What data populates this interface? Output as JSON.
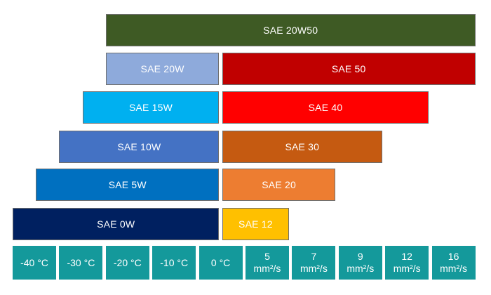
{
  "chart_data": {
    "type": "bar",
    "title": "",
    "scale": {
      "labels": [
        [
          "-40 °C"
        ],
        [
          "-30 °C"
        ],
        [
          "-20 °C"
        ],
        [
          "-10 °C"
        ],
        [
          "0 °C"
        ],
        [
          "5",
          "mm²/s"
        ],
        [
          "7",
          "mm²/s"
        ],
        [
          "9",
          "mm²/s"
        ],
        [
          "12",
          "mm²/s"
        ],
        [
          "16",
          "mm²/s"
        ]
      ],
      "color": "#14999b"
    },
    "bars": [
      {
        "label": "SAE 20W50",
        "start": 2,
        "end": 10,
        "color": "#3e5a24"
      },
      {
        "label": "SAE 20W",
        "start": 2,
        "end": 4.5,
        "color": "#8eaadb"
      },
      {
        "label": "SAE 50",
        "start": 4.5,
        "end": 10,
        "color": "#c00000"
      },
      {
        "label": "SAE 15W",
        "start": 1.5,
        "end": 4.5,
        "color": "#00b0f0"
      },
      {
        "label": "SAE 40",
        "start": 4.5,
        "end": 9,
        "color": "#ff0000"
      },
      {
        "label": "SAE 10W",
        "start": 1,
        "end": 4.5,
        "color": "#4472c4"
      },
      {
        "label": "SAE 30",
        "start": 4.5,
        "end": 8,
        "color": "#c55a11"
      },
      {
        "label": "SAE 5W",
        "start": 0.5,
        "end": 4.5,
        "color": "#0070c0"
      },
      {
        "label": "SAE 20",
        "start": 4.5,
        "end": 7,
        "color": "#ed7d31"
      },
      {
        "label": "SAE 0W",
        "start": 0,
        "end": 4.5,
        "color": "#002060"
      },
      {
        "label": "SAE 12",
        "start": 4.5,
        "end": 6,
        "color": "#ffc000"
      }
    ]
  }
}
